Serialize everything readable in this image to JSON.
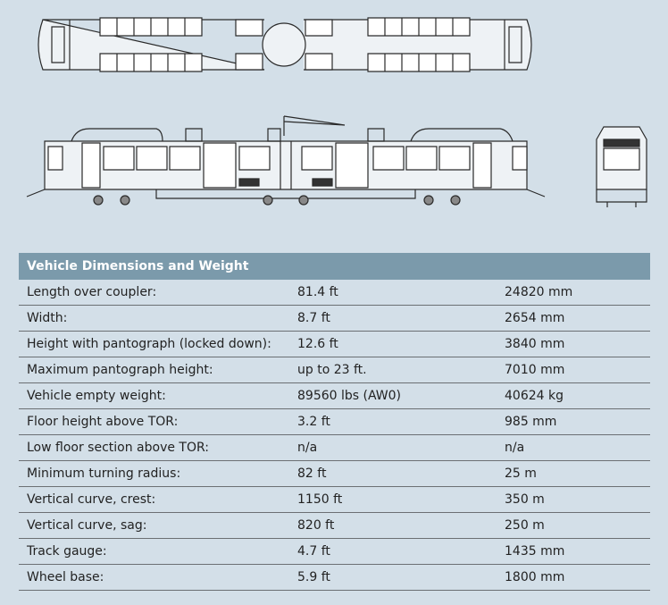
{
  "table": {
    "title": "Vehicle Dimensions and Weight",
    "rows": [
      [
        "Length over coupler:",
        "81.4 ft",
        "24820 mm"
      ],
      [
        "Width:",
        "8.7 ft",
        "2654 mm"
      ],
      [
        "Height with pantograph (locked down):",
        "12.6 ft",
        "3840 mm"
      ],
      [
        "Maximum pantograph height:",
        "up to 23 ft.",
        "7010 mm"
      ],
      [
        "Vehicle empty weight:",
        "89560 lbs (AW0)",
        "40624 kg"
      ],
      [
        "Floor height above TOR:",
        "3.2 ft",
        "985 mm"
      ],
      [
        "Low floor section above TOR:",
        "n/a",
        "n/a"
      ],
      [
        "Minimum turning radius:",
        "82 ft",
        "25 m"
      ],
      [
        "Vertical curve, crest:",
        "1150 ft",
        "350 m"
      ],
      [
        "Vertical curve, sag:",
        "820 ft",
        "250 m"
      ],
      [
        "Track gauge:",
        "4.7 ft",
        "1435 mm"
      ],
      [
        "Wheel base:",
        "5.9 ft",
        "1800 mm"
      ]
    ]
  }
}
